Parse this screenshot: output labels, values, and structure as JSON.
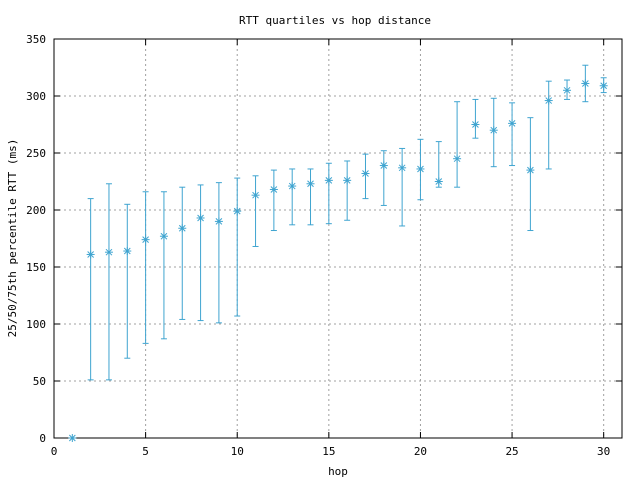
{
  "chart_data": {
    "type": "scatter",
    "title": "RTT quartiles vs hop distance",
    "xlabel": "hop",
    "ylabel": "25/50/75th percentile RTT (ms)",
    "xlim": [
      0,
      31
    ],
    "ylim": [
      0,
      350
    ],
    "xticks": [
      0,
      5,
      10,
      15,
      20,
      25,
      30
    ],
    "yticks": [
      0,
      50,
      100,
      150,
      200,
      250,
      300,
      350
    ],
    "grid": true,
    "color": "#3fa4d0",
    "series": [
      {
        "x": [
          1,
          2,
          3,
          4,
          5,
          6,
          7,
          8,
          9,
          10,
          11,
          12,
          13,
          14,
          15,
          16,
          17,
          18,
          19,
          20,
          21,
          22,
          23,
          24,
          25,
          26,
          27,
          28,
          29,
          30
        ],
        "median": [
          0,
          161,
          163,
          164,
          174,
          177,
          184,
          193,
          190,
          199,
          213,
          218,
          221,
          223,
          226,
          226,
          232,
          239,
          237,
          236,
          225,
          245,
          275,
          270,
          276,
          235,
          296,
          305,
          311,
          309
        ],
        "q25": [
          0,
          51,
          51,
          70,
          83,
          87,
          104,
          103,
          101,
          107,
          168,
          182,
          187,
          187,
          188,
          191,
          210,
          204,
          186,
          209,
          220,
          220,
          263,
          238,
          239,
          182,
          236,
          297,
          295,
          303
        ],
        "q75": [
          0,
          210,
          223,
          205,
          216,
          216,
          220,
          222,
          224,
          228,
          230,
          235,
          236,
          236,
          241,
          243,
          249,
          252,
          254,
          262,
          260,
          295,
          297,
          298,
          294,
          281,
          313,
          314,
          327,
          316
        ]
      }
    ]
  }
}
